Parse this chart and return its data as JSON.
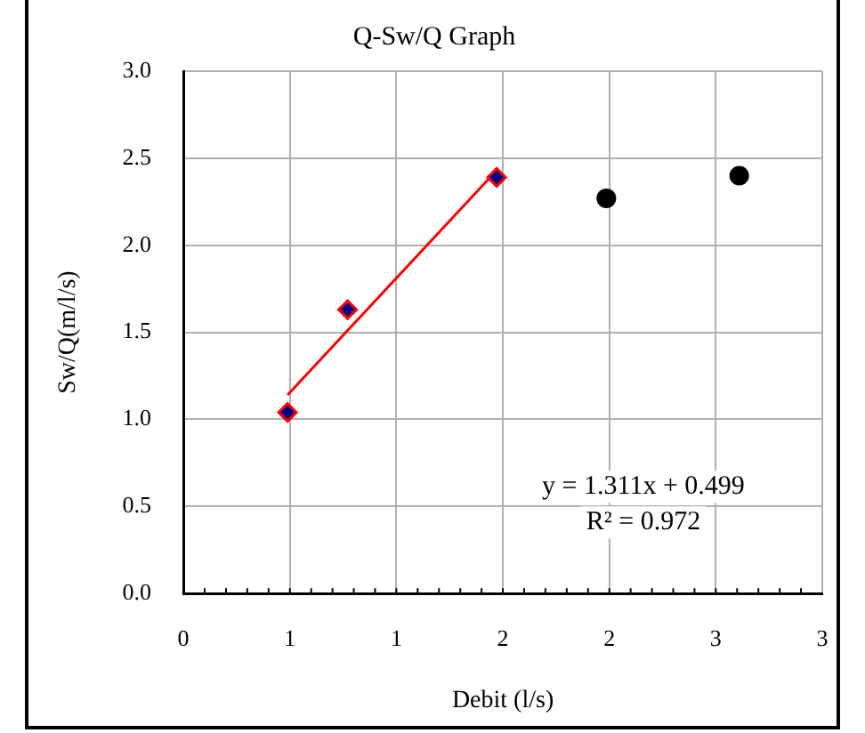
{
  "chart_data": {
    "type": "scatter",
    "title": "Q-Sw/Q Graph",
    "xlabel": "Debit (l/s)",
    "ylabel": "Sw/Q(m/l/s)",
    "series": [
      {
        "color": "#00008b",
        "marker": "diamond",
        "x": [
          0.489,
          0.771,
          1.471
        ],
        "values": [
          1.04,
          1.63,
          2.39
        ]
      },
      {
        "color": "#000000",
        "marker": "circle",
        "x": [
          1.986,
          2.61
        ],
        "values": [
          2.27,
          2.4
        ]
      },
      {
        "type": "line",
        "color": "#ff0000",
        "marker": "none",
        "x": [
          0.489,
          1.471
        ],
        "values": [
          1.14,
          2.43
        ]
      }
    ],
    "xlim": [
      0,
      3
    ],
    "xticks": [
      0,
      {
        "value": 0.5,
        "label": "1"
      },
      {
        "value": 1,
        "label": "1"
      },
      {
        "value": 1.5,
        "label": "2"
      },
      {
        "value": 2,
        "label": "2"
      },
      {
        "value": 2.5,
        "label": "3"
      },
      {
        "value": 3,
        "label": "3"
      }
    ],
    "ylim": [
      0,
      3
    ],
    "yticks": [
      {
        "value": 0,
        "label": "0.0"
      },
      {
        "value": 0.5,
        "label": "0.5"
      },
      {
        "value": 1,
        "label": "1.0"
      },
      {
        "value": 1.5,
        "label": "1.5"
      },
      {
        "value": 2,
        "label": "2.0"
      },
      {
        "value": 2.5,
        "label": "2.5"
      },
      {
        "value": 3,
        "label": "3.0"
      }
    ],
    "grid": true,
    "legend": false,
    "annotations": [
      "y = 1.311x + 0.499",
      "R² = 0.972"
    ]
  }
}
